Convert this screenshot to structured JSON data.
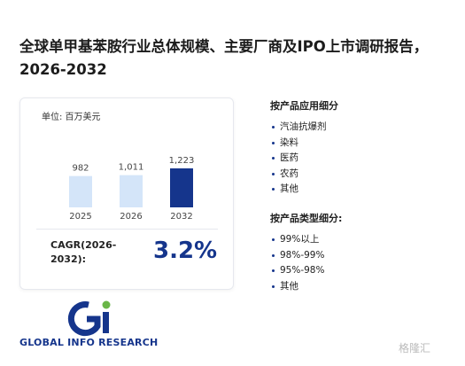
{
  "title": "全球单甲基苯胺行业总体规模、主要厂商及IPO上市调研报告，2026-2032",
  "chart_data": {
    "type": "bar",
    "unit": "单位: 百万美元",
    "categories": [
      "2025",
      "2026",
      "2032"
    ],
    "values": [
      982,
      1011,
      1223
    ],
    "value_labels": [
      "982",
      "1,011",
      "1,223"
    ],
    "colors": [
      "#d4e5f9",
      "#d4e5f9",
      "#15358c"
    ]
  },
  "cagr": {
    "label": "CAGR(2026-2032):",
    "value": "3.2%"
  },
  "segments": [
    {
      "heading": "按产品应用细分",
      "items": [
        "汽油抗爆剂",
        "染料",
        "医药",
        "农药",
        "其他"
      ]
    },
    {
      "heading": "按产品类型细分:",
      "items": [
        "99%以上",
        "98%-99%",
        "95%-98%",
        "其他"
      ]
    }
  ],
  "logo": "GLOBAL INFO RESEARCH",
  "watermark": "格隆汇"
}
